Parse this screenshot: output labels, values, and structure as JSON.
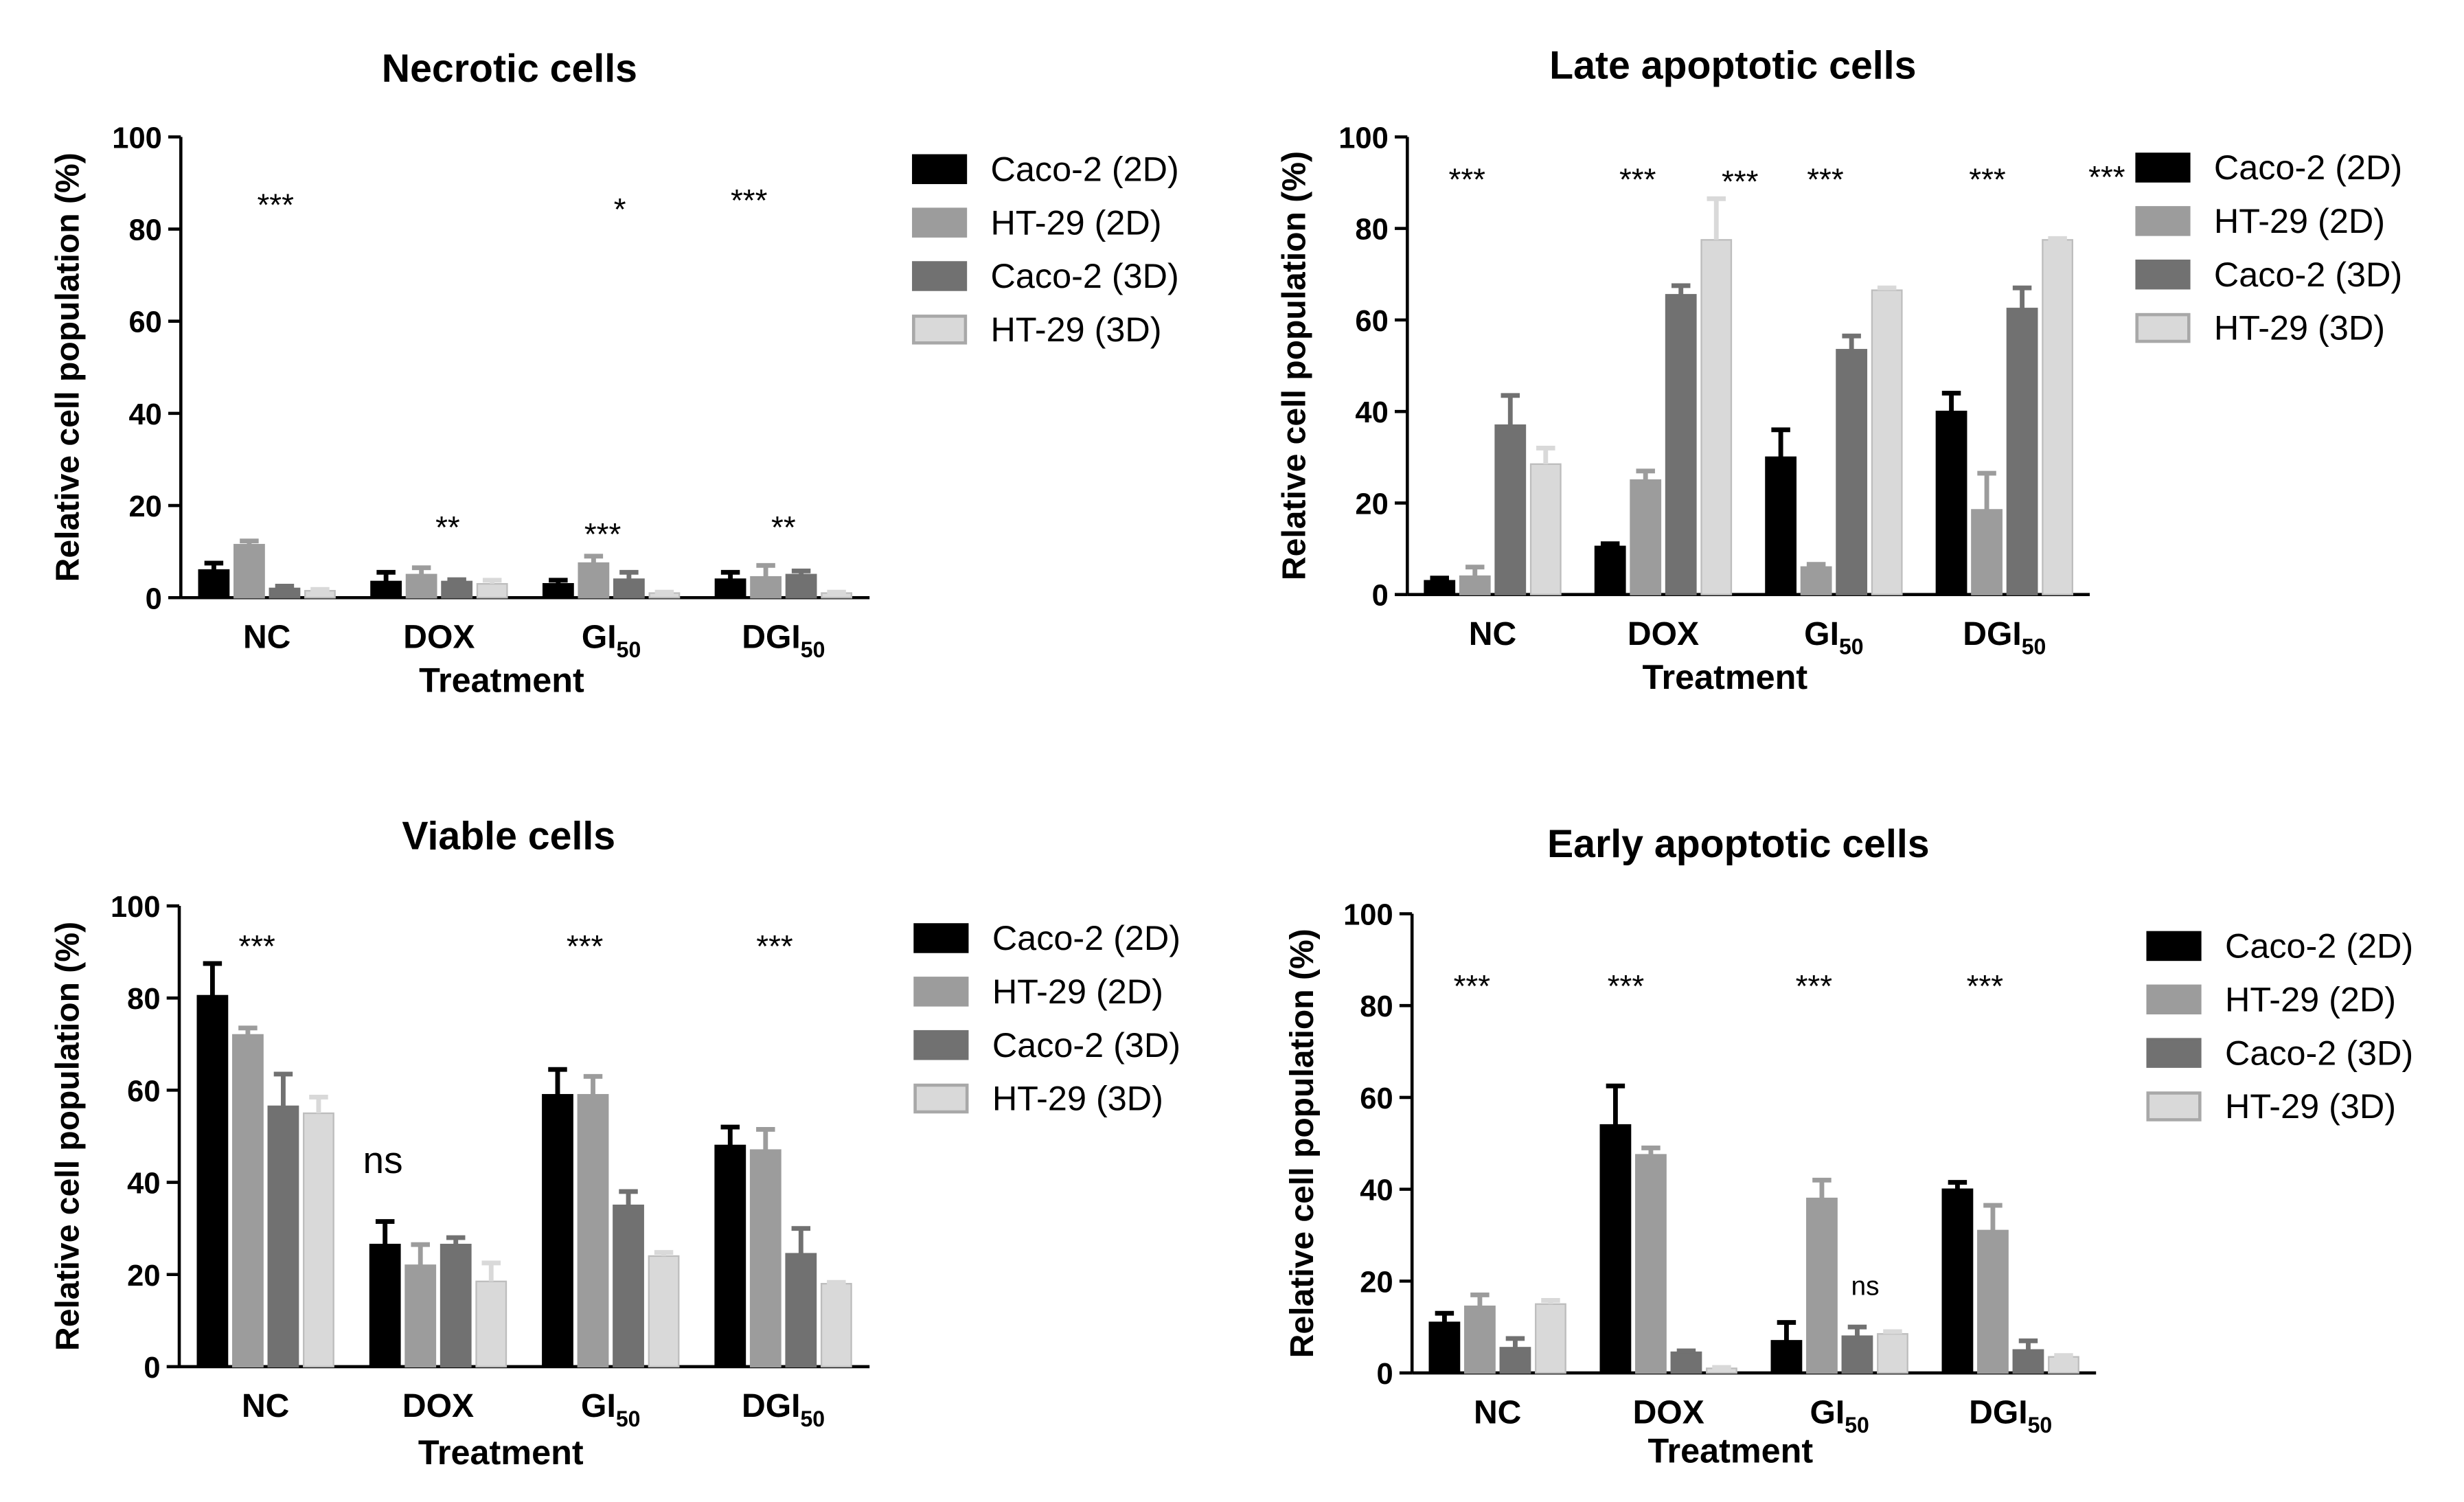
{
  "chart_data": [
    {
      "id": "necrotic",
      "type": "bar",
      "title": "Necrotic cells",
      "xlabel": "Treatment",
      "ylabel": "Relative cell population (%)",
      "ylim": [
        0,
        100
      ],
      "yticks": [
        "0",
        "20",
        "40",
        "60",
        "80",
        "100"
      ],
      "categories": [
        {
          "label": "NC",
          "sub": ""
        },
        {
          "label": "DOX",
          "sub": ""
        },
        {
          "label": "GI",
          "sub": "50"
        },
        {
          "label": "DGI",
          "sub": "50"
        }
      ],
      "series": [
        {
          "name": "Caco-2 (2D)",
          "color": "#000000",
          "values": [
            6,
            3.5,
            3,
            4
          ],
          "errors": [
            1.5,
            2,
            0.8,
            1.5
          ]
        },
        {
          "name": "HT-29 (2D)",
          "color": "#9c9c9c",
          "values": [
            11.5,
            5,
            7.5,
            4.5
          ],
          "errors": [
            0.8,
            1.5,
            1.5,
            2.5
          ]
        },
        {
          "name": "Caco-2 (3D)",
          "color": "#717171",
          "values": [
            2,
            3.5,
            4,
            5
          ],
          "errors": [
            0.5,
            0.4,
            1.5,
            0.8
          ]
        },
        {
          "name": "HT-29 (3D)",
          "color": "#d9d9d9",
          "values": [
            1.5,
            3,
            1,
            1
          ],
          "errors": [
            0.3,
            0.8,
            0.2,
            0.2
          ]
        }
      ],
      "annotations": [
        {
          "text": "***",
          "x": 0.05,
          "y": 87
        },
        {
          "text": "**",
          "x": 1.05,
          "y": 17
        },
        {
          "text": "*",
          "x": 2.05,
          "y": 86
        },
        {
          "text": "***",
          "x": 1.95,
          "y": 15.5
        },
        {
          "text": "***",
          "x": 2.8,
          "y": 88
        },
        {
          "text": "**",
          "x": 3.0,
          "y": 17
        }
      ]
    },
    {
      "id": "late-apoptotic",
      "type": "bar",
      "title": "Late apoptotic cells",
      "xlabel": "Treatment",
      "ylabel": "Relative cell population (%)",
      "ylim": [
        0,
        100
      ],
      "yticks": [
        "0",
        "20",
        "40",
        "60",
        "80",
        "100"
      ],
      "categories": [
        {
          "label": "NC",
          "sub": ""
        },
        {
          "label": "DOX",
          "sub": ""
        },
        {
          "label": "GI",
          "sub": "50"
        },
        {
          "label": "DGI",
          "sub": "50"
        }
      ],
      "series": [
        {
          "name": "Caco-2 (2D)",
          "color": "#000000",
          "values": [
            3,
            10.5,
            30,
            40
          ],
          "errors": [
            0.6,
            0.6,
            6,
            4
          ]
        },
        {
          "name": "HT-29 (2D)",
          "color": "#9c9c9c",
          "values": [
            4,
            25,
            6,
            18.5
          ],
          "errors": [
            2,
            2,
            0.6,
            8
          ]
        },
        {
          "name": "Caco-2 (3D)",
          "color": "#717171",
          "values": [
            37,
            65.5,
            53.5,
            62.5
          ],
          "errors": [
            6.5,
            2,
            3,
            4.5
          ]
        },
        {
          "name": "HT-29 (3D)",
          "color": "#d9d9d9",
          "values": [
            28.5,
            77.5,
            66.5,
            77.5
          ],
          "errors": [
            3.5,
            9,
            0.5,
            0.3
          ]
        }
      ],
      "annotations": [
        {
          "text": "***",
          "x": -0.15,
          "y": 92.5
        },
        {
          "text": "***",
          "x": 0.85,
          "y": 92.5
        },
        {
          "text": "***",
          "x": 1.45,
          "y": 92
        },
        {
          "text": "***",
          "x": 1.95,
          "y": 92.5
        },
        {
          "text": "***",
          "x": 2.9,
          "y": 92.5
        },
        {
          "text": "***",
          "x": 3.6,
          "y": 93
        }
      ]
    },
    {
      "id": "viable",
      "type": "bar",
      "title": "Viable cells",
      "xlabel": "Treatment",
      "ylabel": "Relative cell population (%)",
      "ylim": [
        0,
        100
      ],
      "yticks": [
        "0",
        "20",
        "40",
        "60",
        "80",
        "100"
      ],
      "categories": [
        {
          "label": "NC",
          "sub": ""
        },
        {
          "label": "DOX",
          "sub": ""
        },
        {
          "label": "GI",
          "sub": "50"
        },
        {
          "label": "DGI",
          "sub": "50"
        }
      ],
      "series": [
        {
          "name": "Caco-2 (2D)",
          "color": "#000000",
          "values": [
            80.5,
            26.5,
            59,
            48
          ],
          "errors": [
            7,
            5,
            5.5,
            4
          ]
        },
        {
          "name": "HT-29 (2D)",
          "color": "#9c9c9c",
          "values": [
            72,
            22,
            59,
            47
          ],
          "errors": [
            1.5,
            4.5,
            4,
            4.5
          ]
        },
        {
          "name": "Caco-2 (3D)",
          "color": "#717171",
          "values": [
            56.5,
            26.5,
            35,
            24.5
          ],
          "errors": [
            7,
            1.5,
            3,
            5.5
          ]
        },
        {
          "name": "HT-29 (3D)",
          "color": "#d9d9d9",
          "values": [
            55,
            18.5,
            24,
            18
          ],
          "errors": [
            3.5,
            4,
            0.8,
            0.3
          ]
        }
      ],
      "annotations": [
        {
          "text": "***",
          "x": -0.05,
          "y": 93
        },
        {
          "text": "ns",
          "x": 0.68,
          "y": 42
        },
        {
          "text": "***",
          "x": 1.85,
          "y": 93
        },
        {
          "text": "***",
          "x": 2.95,
          "y": 93
        }
      ]
    },
    {
      "id": "early-apoptotic",
      "type": "bar",
      "title": "Early apoptotic cells",
      "xlabel": "Treatment",
      "ylabel": "Relative cell population (%)",
      "ylim": [
        0,
        100
      ],
      "yticks": [
        "0",
        "20",
        "40",
        "60",
        "80",
        "100"
      ],
      "categories": [
        {
          "label": "NC",
          "sub": ""
        },
        {
          "label": "DOX",
          "sub": ""
        },
        {
          "label": "GI",
          "sub": "50"
        },
        {
          "label": "DGI",
          "sub": "50"
        }
      ],
      "series": [
        {
          "name": "Caco-2 (2D)",
          "color": "#000000",
          "values": [
            11,
            54,
            7,
            40
          ],
          "errors": [
            2,
            8.5,
            4,
            1.5
          ]
        },
        {
          "name": "HT-29 (2D)",
          "color": "#9c9c9c",
          "values": [
            14.5,
            47.5,
            38,
            31
          ],
          "errors": [
            2.5,
            1.5,
            4,
            5.5
          ]
        },
        {
          "name": "Caco-2 (3D)",
          "color": "#717171",
          "values": [
            5.5,
            4.5,
            8,
            5
          ],
          "errors": [
            2,
            0.3,
            2,
            2
          ]
        },
        {
          "name": "HT-29 (3D)",
          "color": "#d9d9d9",
          "values": [
            15,
            1,
            8.5,
            3.5
          ],
          "errors": [
            0.8,
            0.2,
            0.5,
            0.3
          ]
        }
      ],
      "annotations": [
        {
          "text": "***",
          "x": -0.15,
          "y": 86
        },
        {
          "text": "***",
          "x": 0.75,
          "y": 86
        },
        {
          "text": "***",
          "x": 1.85,
          "y": 86
        },
        {
          "text": "ns",
          "x": 2.15,
          "y": 17
        },
        {
          "text": "***",
          "x": 2.85,
          "y": 86
        }
      ]
    }
  ]
}
